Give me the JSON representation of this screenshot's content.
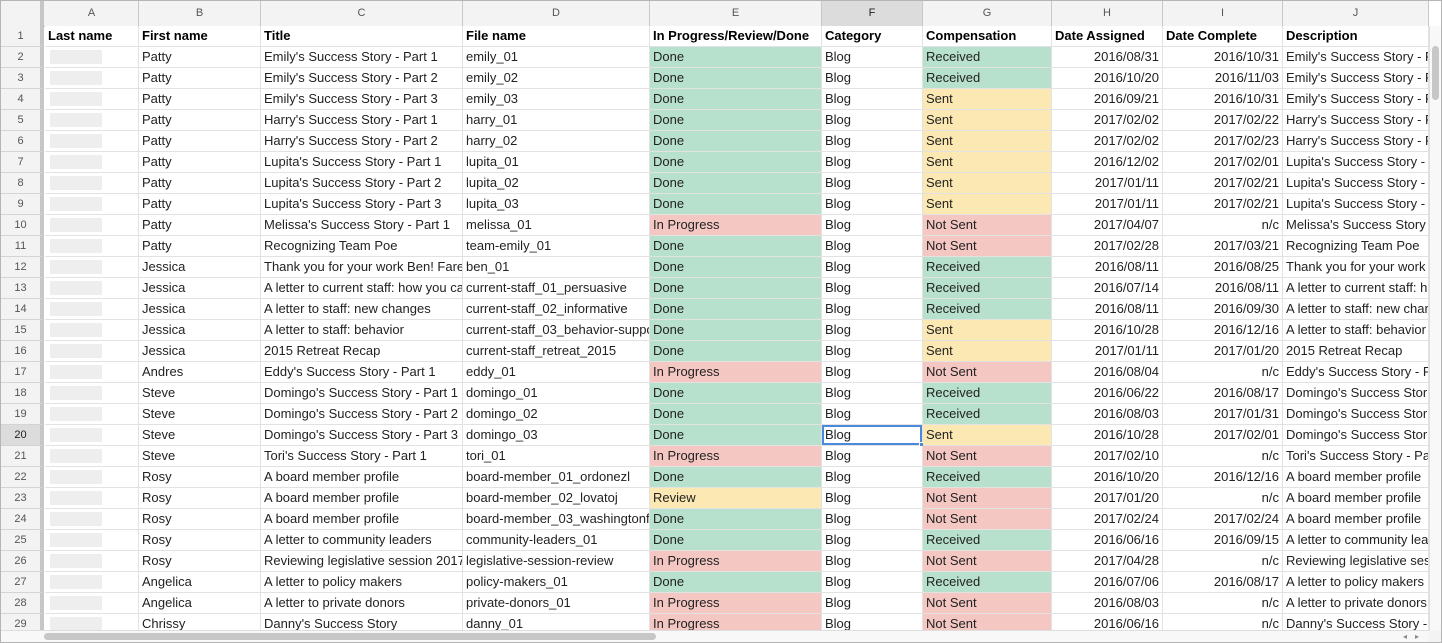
{
  "columns": [
    "A",
    "B",
    "C",
    "D",
    "E",
    "F",
    "G",
    "H",
    "I",
    "J"
  ],
  "selected_column": "F",
  "selected_row": 20,
  "headers": [
    "Last name",
    "First name",
    "Title",
    "File name",
    "In Progress/Review/Done",
    "Category",
    "Compensation",
    "Date Assigned",
    "Date Complete",
    "Description"
  ],
  "rows": [
    {
      "n": "2",
      "first": "Patty",
      "title": "Emily's Success Story - Part 1",
      "file": "emily_01",
      "status": "Done",
      "cat": "Blog",
      "comp": "Received",
      "assigned": "2016/08/31",
      "complete": "2016/10/31",
      "desc": "Emily's Success Story - P"
    },
    {
      "n": "3",
      "first": "Patty",
      "title": "Emily's Success Story - Part 2",
      "file": "emily_02",
      "status": "Done",
      "cat": "Blog",
      "comp": "Received",
      "assigned": "2016/10/20",
      "complete": "2016/11/03",
      "desc": "Emily's Success Story - P"
    },
    {
      "n": "4",
      "first": "Patty",
      "title": "Emily's Success Story - Part 3",
      "file": "emily_03",
      "status": "Done",
      "cat": "Blog",
      "comp": "Sent",
      "assigned": "2016/09/21",
      "complete": "2016/10/31",
      "desc": "Emily's Success Story - P"
    },
    {
      "n": "5",
      "first": "Patty",
      "title": "Harry's Success Story - Part 1",
      "file": "harry_01",
      "status": "Done",
      "cat": "Blog",
      "comp": "Sent",
      "assigned": "2017/02/02",
      "complete": "2017/02/22",
      "desc": "Harry's Success Story - P"
    },
    {
      "n": "6",
      "first": "Patty",
      "title": "Harry's Success Story - Part 2",
      "file": "harry_02",
      "status": "Done",
      "cat": "Blog",
      "comp": "Sent",
      "assigned": "2017/02/02",
      "complete": "2017/02/23",
      "desc": "Harry's Success Story - P"
    },
    {
      "n": "7",
      "first": "Patty",
      "title": "Lupita's Success Story - Part 1",
      "file": "lupita_01",
      "status": "Done",
      "cat": "Blog",
      "comp": "Sent",
      "assigned": "2016/12/02",
      "complete": "2017/02/01",
      "desc": "Lupita's Success Story -"
    },
    {
      "n": "8",
      "first": "Patty",
      "title": "Lupita's Success Story - Part 2",
      "file": "lupita_02",
      "status": "Done",
      "cat": "Blog",
      "comp": "Sent",
      "assigned": "2017/01/11",
      "complete": "2017/02/21",
      "desc": "Lupita's Success Story -"
    },
    {
      "n": "9",
      "first": "Patty",
      "title": "Lupita's Success Story - Part 3",
      "file": "lupita_03",
      "status": "Done",
      "cat": "Blog",
      "comp": "Sent",
      "assigned": "2017/01/11",
      "complete": "2017/02/21",
      "desc": "Lupita's Success Story -"
    },
    {
      "n": "10",
      "first": "Patty",
      "title": "Melissa's Success Story - Part 1",
      "file": "melissa_01",
      "status": "In Progress",
      "cat": "Blog",
      "comp": "Not Sent",
      "assigned": "2017/04/07",
      "complete": "n/c",
      "desc": "Melissa's Success Story"
    },
    {
      "n": "11",
      "first": "Patty",
      "title": "Recognizing Team Poe",
      "file": "team-emily_01",
      "status": "Done",
      "cat": "Blog",
      "comp": "Not Sent",
      "assigned": "2017/02/28",
      "complete": "2017/03/21",
      "desc": "Recognizing Team Poe"
    },
    {
      "n": "12",
      "first": "Jessica",
      "title": "Thank you for your work Ben! Fare",
      "file": "ben_01",
      "status": "Done",
      "cat": "Blog",
      "comp": "Received",
      "assigned": "2016/08/11",
      "complete": "2016/08/25",
      "desc": "Thank you for your work"
    },
    {
      "n": "13",
      "first": "Jessica",
      "title": "A letter to current staff: how you ca",
      "file": "current-staff_01_persuasive",
      "status": "Done",
      "cat": "Blog",
      "comp": "Received",
      "assigned": "2016/07/14",
      "complete": "2016/08/11",
      "desc": "A letter to current staff: h"
    },
    {
      "n": "14",
      "first": "Jessica",
      "title": "A letter to staff: new changes",
      "file": "current-staff_02_informative",
      "status": "Done",
      "cat": "Blog",
      "comp": "Received",
      "assigned": "2016/08/11",
      "complete": "2016/09/30",
      "desc": "A letter to staff: new char"
    },
    {
      "n": "15",
      "first": "Jessica",
      "title": "A letter to staff: behavior",
      "file": "current-staff_03_behavior-suppo",
      "status": "Done",
      "cat": "Blog",
      "comp": "Sent",
      "assigned": "2016/10/28",
      "complete": "2016/12/16",
      "desc": "A letter to staff: behavior"
    },
    {
      "n": "16",
      "first": "Jessica",
      "title": "2015 Retreat Recap",
      "file": "current-staff_retreat_2015",
      "status": "Done",
      "cat": "Blog",
      "comp": "Sent",
      "assigned": "2017/01/11",
      "complete": "2017/01/20",
      "desc": "2015 Retreat Recap"
    },
    {
      "n": "17",
      "first": "Andres",
      "title": "Eddy's Success Story - Part 1",
      "file": "eddy_01",
      "status": "In Progress",
      "cat": "Blog",
      "comp": "Not Sent",
      "assigned": "2016/08/04",
      "complete": "n/c",
      "desc": "Eddy's Success Story - P"
    },
    {
      "n": "18",
      "first": "Steve",
      "title": "Domingo's Success Story - Part 1",
      "file": "domingo_01",
      "status": "Done",
      "cat": "Blog",
      "comp": "Received",
      "assigned": "2016/06/22",
      "complete": "2016/08/17",
      "desc": "Domingo's Success Stor"
    },
    {
      "n": "19",
      "first": "Steve",
      "title": "Domingo's Success Story - Part 2",
      "file": "domingo_02",
      "status": "Done",
      "cat": "Blog",
      "comp": "Received",
      "assigned": "2016/08/03",
      "complete": "2017/01/31",
      "desc": "Domingo's Success Stor"
    },
    {
      "n": "20",
      "first": "Steve",
      "title": "Domingo's Success Story - Part 3",
      "file": "domingo_03",
      "status": "Done",
      "cat": "Blog",
      "comp": "Sent",
      "assigned": "2016/10/28",
      "complete": "2017/02/01",
      "desc": "Domingo's Success Stor"
    },
    {
      "n": "21",
      "first": "Steve",
      "title": "Tori's Success Story - Part 1",
      "file": "tori_01",
      "status": "In Progress",
      "cat": "Blog",
      "comp": "Not Sent",
      "assigned": "2017/02/10",
      "complete": "n/c",
      "desc": "Tori's Success Story - Pa"
    },
    {
      "n": "22",
      "first": "Rosy",
      "title": "A board member profile",
      "file": "board-member_01_ordonezl",
      "status": "Done",
      "cat": "Blog",
      "comp": "Received",
      "assigned": "2016/10/20",
      "complete": "2016/12/16",
      "desc": "A board member profile"
    },
    {
      "n": "23",
      "first": "Rosy",
      "title": "A board member profile",
      "file": "board-member_02_lovatoj",
      "status": "Review",
      "cat": "Blog",
      "comp": "Not Sent",
      "assigned": "2017/01/20",
      "complete": "n/c",
      "desc": "A board member profile"
    },
    {
      "n": "24",
      "first": "Rosy",
      "title": "A board member profile",
      "file": "board-member_03_washingtonf",
      "status": "Done",
      "cat": "Blog",
      "comp": "Not Sent",
      "assigned": "2017/02/24",
      "complete": "2017/02/24",
      "desc": "A board member profile"
    },
    {
      "n": "25",
      "first": "Rosy",
      "title": "A letter to community leaders",
      "file": "community-leaders_01",
      "status": "Done",
      "cat": "Blog",
      "comp": "Received",
      "assigned": "2016/06/16",
      "complete": "2016/09/15",
      "desc": "A letter to community lea"
    },
    {
      "n": "26",
      "first": "Rosy",
      "title": "Reviewing legislative session 2017",
      "file": "legislative-session-review",
      "status": "In Progress",
      "cat": "Blog",
      "comp": "Not Sent",
      "assigned": "2017/04/28",
      "complete": "n/c",
      "desc": "Reviewing legislative ses"
    },
    {
      "n": "27",
      "first": "Angelica",
      "title": "A letter to policy makers",
      "file": "policy-makers_01",
      "status": "Done",
      "cat": "Blog",
      "comp": "Received",
      "assigned": "2016/07/06",
      "complete": "2016/08/17",
      "desc": "A letter to policy makers"
    },
    {
      "n": "28",
      "first": "Angelica",
      "title": "A letter to private donors",
      "file": "private-donors_01",
      "status": "In Progress",
      "cat": "Blog",
      "comp": "Not Sent",
      "assigned": "2016/08/03",
      "complete": "n/c",
      "desc": "A letter to private donors"
    },
    {
      "n": "29",
      "first": "Chrissy",
      "title": "Danny's Success Story",
      "file": "danny_01",
      "status": "In Progress",
      "cat": "Blog",
      "comp": "Not Sent",
      "assigned": "2016/06/16",
      "complete": "n/c",
      "desc": "Danny's Success Story -"
    }
  ],
  "colors": {
    "done": "#b7e1cd",
    "review": "#fce8b2",
    "in_progress": "#f4c7c3",
    "received": "#b7e1cd",
    "sent": "#fce8b2",
    "not_sent": "#f4c7c3",
    "selection": "#4a89dc"
  }
}
